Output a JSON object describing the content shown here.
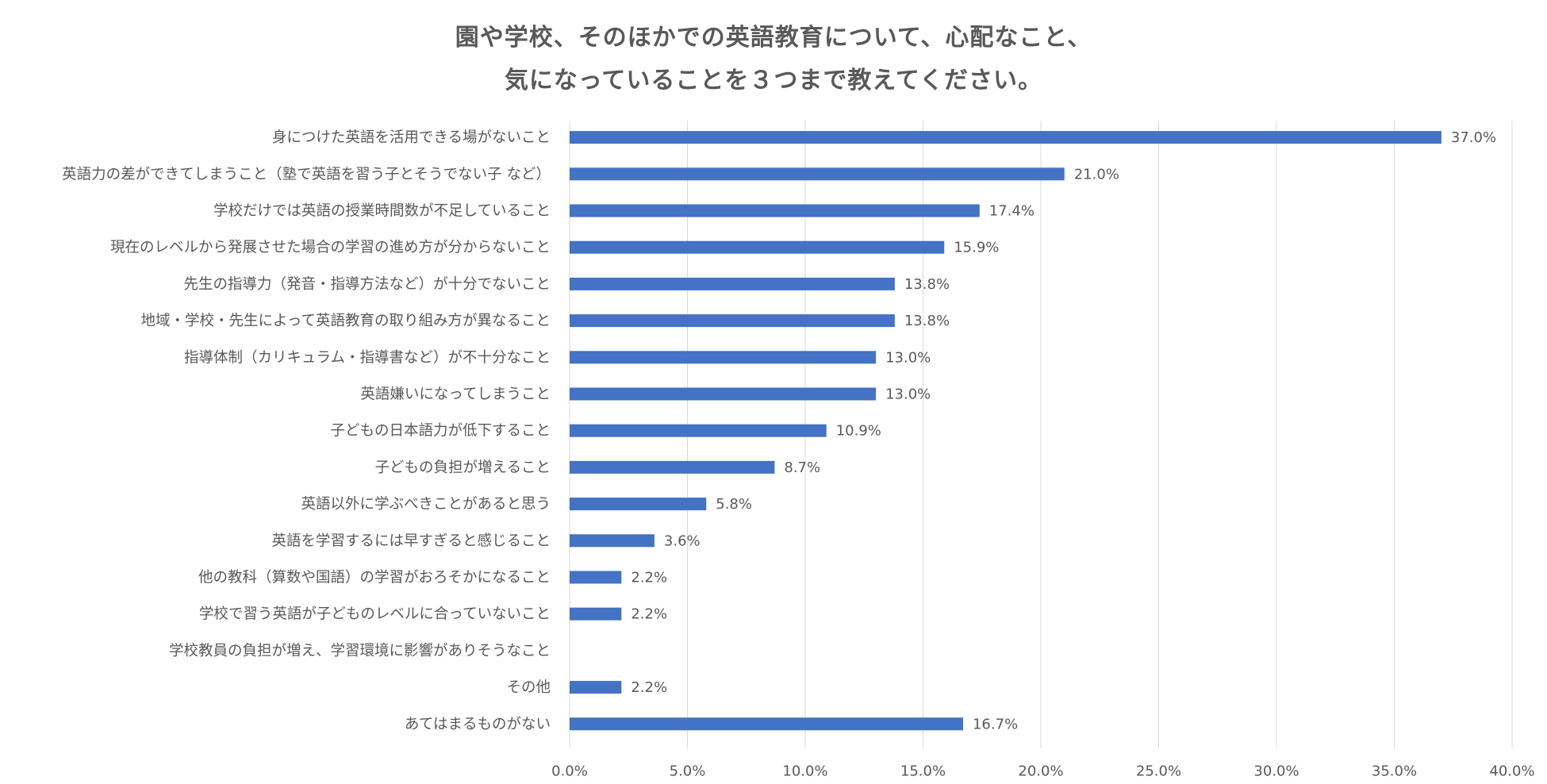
{
  "title": {
    "line1": "園や学校、そのほかでの英語教育について、心配なこと、",
    "line2": "気になっていることを３つまで教えてください。"
  },
  "colors": {
    "bar": "#4472C4",
    "grid": "#D9D9D9",
    "text": "#595959"
  },
  "chart_data": {
    "type": "bar",
    "orientation": "horizontal",
    "title": "園や学校、そのほかでの英語教育について、心配なこと、気になっていることを３つまで教えてください。",
    "categories": [
      "身につけた英語を活用できる場がないこと",
      "英語力の差ができてしまうこと（塾で英語を習う子とそうでない子 など）",
      "学校だけでは英語の授業時間数が不足していること",
      "現在のレベルから発展させた場合の学習の進め方が分からないこと",
      "先生の指導力（発音・指導方法など）が十分でないこと",
      "地域・学校・先生によって英語教育の取り組み方が異なること",
      "指導体制（カリキュラム・指導書など）が不十分なこと",
      "英語嫌いになってしまうこと",
      "子どもの日本語力が低下すること",
      "子どもの負担が増えること",
      "英語以外に学ぶべきことがあると思う",
      "英語を学習するには早すぎると感じること",
      "他の教科（算数や国語）の学習がおろそかになること",
      "学校で習う英語が子どものレベルに合っていないこと",
      "学校教員の負担が増え、学習環境に影響がありそうなこと",
      "その他",
      "あてはまるものがない"
    ],
    "values": [
      37.0,
      21.0,
      17.4,
      15.9,
      13.8,
      13.8,
      13.0,
      13.0,
      10.9,
      8.7,
      5.8,
      3.6,
      2.2,
      2.2,
      null,
      2.2,
      16.7
    ],
    "value_labels": [
      "37.0%",
      "21.0%",
      "17.4%",
      "15.9%",
      "13.8%",
      "13.8%",
      "13.0%",
      "13.0%",
      "10.9%",
      "8.7%",
      "5.8%",
      "3.6%",
      "2.2%",
      "2.2%",
      "",
      "2.2%",
      "16.7%"
    ],
    "xlim": [
      0,
      40
    ],
    "x_ticks": [
      0,
      5,
      10,
      15,
      20,
      25,
      30,
      35,
      40
    ],
    "x_tick_labels": [
      "0.0%",
      "5.0%",
      "10.0%",
      "15.0%",
      "20.0%",
      "25.0%",
      "30.0%",
      "35.0%",
      "40.0%"
    ],
    "xlabel": "",
    "ylabel": "",
    "grid": "vertical"
  }
}
